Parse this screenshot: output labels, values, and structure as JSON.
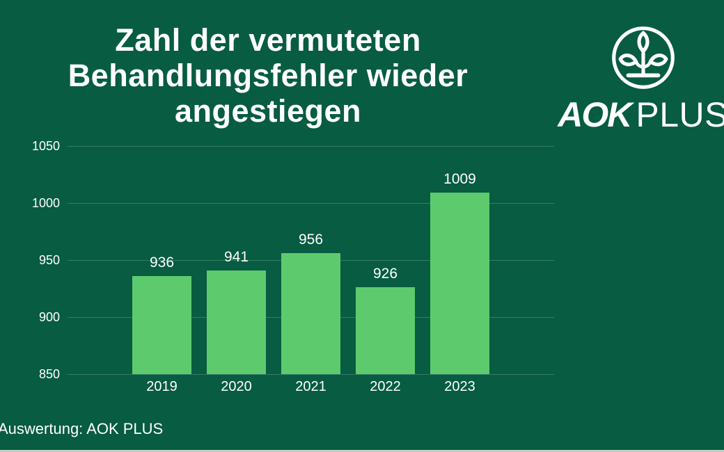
{
  "header": {
    "title_lines": [
      "Zahl der vermuteten",
      "Behandlungsfehler wieder",
      "angestiegen"
    ]
  },
  "logo": {
    "icon": "aok-plant-logo-icon",
    "brand_bold": "AOK",
    "brand_light": "PLUS"
  },
  "footer": {
    "source": "Auswertung: AOK PLUS"
  },
  "colors": {
    "background": "#075C41",
    "bar_fill": "#5DCB6D",
    "gridline": "rgba(255,255,255,0.20)",
    "text": "#FFFFFF",
    "bottom_strip": "#C2CEC8"
  },
  "chart_data": {
    "type": "bar",
    "title": "Zahl der vermuteten Behandlungsfehler wieder angestiegen",
    "categories": [
      "2019",
      "2020",
      "2021",
      "2022",
      "2023"
    ],
    "values": [
      936,
      941,
      956,
      926,
      1009
    ],
    "xlabel": "",
    "ylabel": "",
    "ylim": [
      850,
      1050
    ],
    "yticks": [
      850,
      900,
      950,
      1000,
      1050
    ],
    "grid": true,
    "legend": false,
    "value_labels": true,
    "bar_color": "#5DCB6D",
    "background_color": "#075C41"
  }
}
